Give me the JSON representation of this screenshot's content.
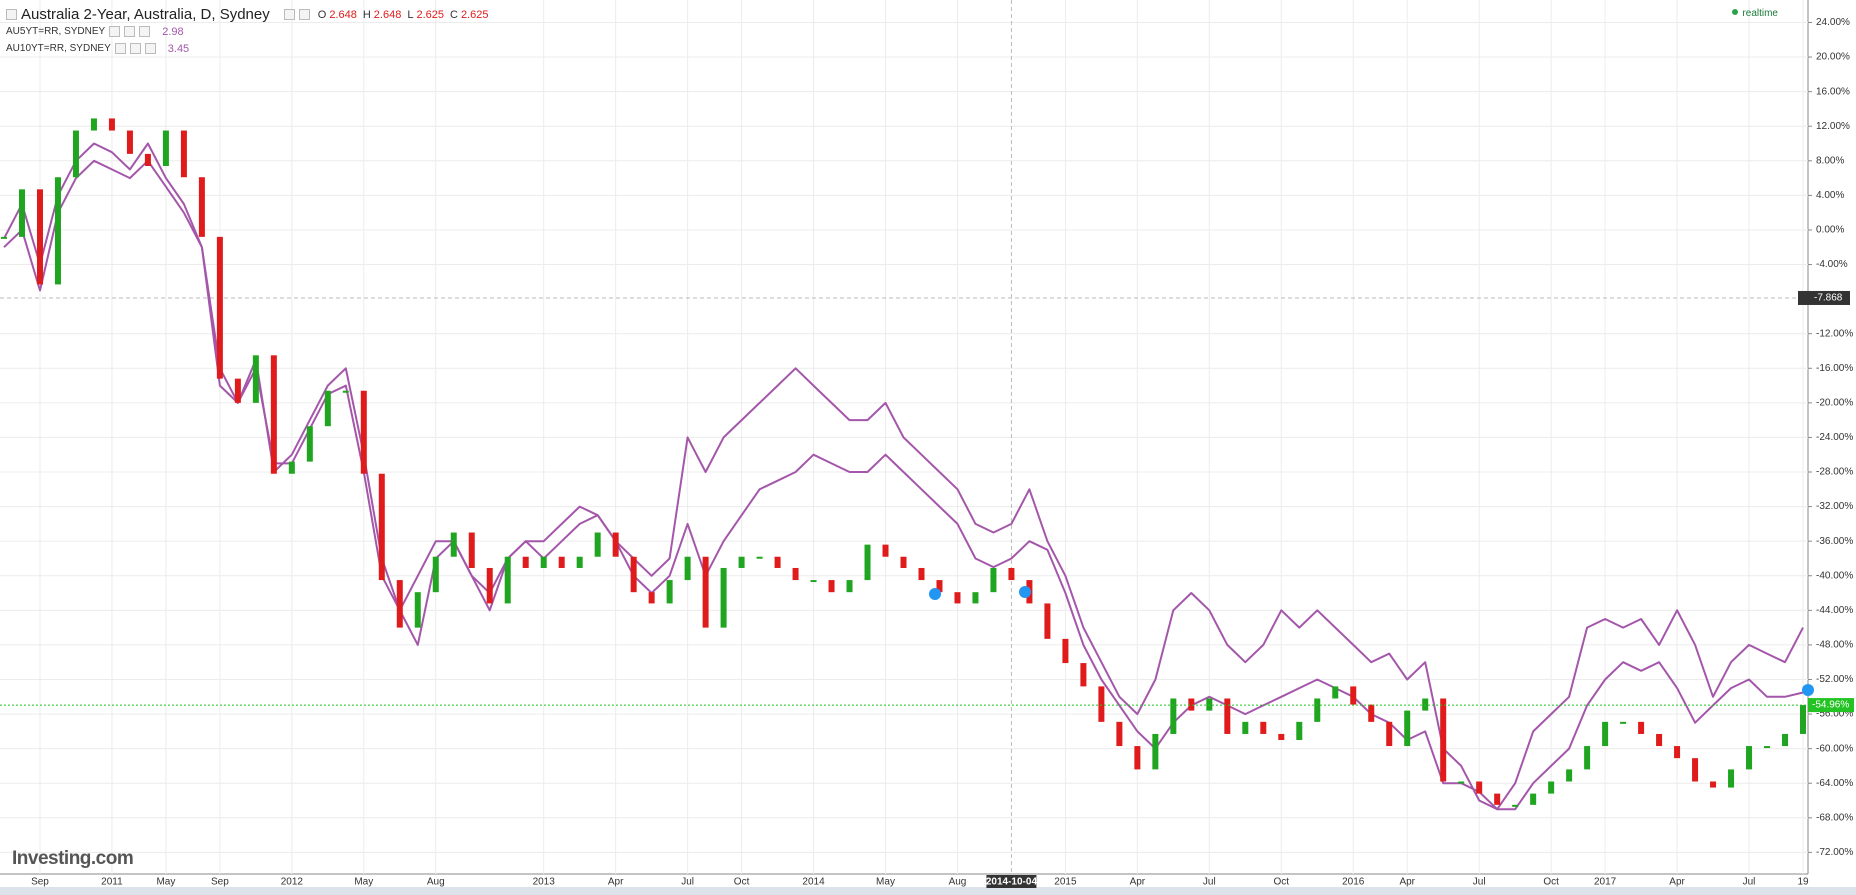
{
  "chart_data": {
    "type": "line",
    "title": "Australia 2-Year, Australia, D, Sydney",
    "ohlc": [
      {
        "label": "O",
        "value": 2.648
      },
      {
        "label": "H",
        "value": 2.648
      },
      {
        "label": "L",
        "value": 2.625
      },
      {
        "label": "C",
        "value": 2.625
      }
    ],
    "status": "realtime",
    "brand": "Investing.com",
    "categories": [
      null,
      null,
      "Sep",
      null,
      null,
      null,
      "2011",
      null,
      null,
      "May",
      null,
      null,
      "Sep",
      null,
      null,
      null,
      "2012",
      null,
      null,
      null,
      "May",
      null,
      null,
      null,
      "Aug",
      null,
      null,
      null,
      null,
      null,
      "2013",
      null,
      null,
      null,
      "Apr",
      null,
      null,
      null,
      "Jul",
      null,
      null,
      "Oct",
      null,
      null,
      null,
      "2014",
      null,
      null,
      null,
      "May",
      null,
      null,
      null,
      "Aug",
      null,
      null,
      "2014-10-04",
      null,
      null,
      "2015",
      null,
      null,
      null,
      "Apr",
      null,
      null,
      null,
      "Jul",
      null,
      null,
      null,
      "Oct",
      null,
      null,
      null,
      "2016",
      null,
      null,
      "Apr",
      null,
      null,
      null,
      "Jul",
      null,
      null,
      null,
      "Oct",
      null,
      null,
      "2017",
      null,
      null,
      null,
      "Apr",
      null,
      null,
      null,
      "Jul",
      null,
      null,
      "19"
    ],
    "series": [
      {
        "style": "candles",
        "up_color": "#1fa51f",
        "down_color": "#e01b1b",
        "values": [
          -0.8,
          4.7,
          -6.3,
          6.1,
          11.5,
          12.9,
          11.5,
          8.8,
          7.4,
          11.5,
          6.1,
          -0.8,
          -17.2,
          -20,
          -14.5,
          -28.2,
          -26.8,
          -22.7,
          -18.6,
          -18.6,
          -28.2,
          -40.5,
          -46,
          -41.9,
          -37.8,
          -35,
          -39.1,
          -43.2,
          -37.8,
          -39.1,
          -37.8,
          -39.1,
          -37.8,
          -35,
          -37.8,
          -41.9,
          -43.2,
          -40.5,
          -37.8,
          -46,
          -39.1,
          -37.8,
          -37.8,
          -39.1,
          -40.5,
          -40.5,
          -41.9,
          -40.5,
          -36.4,
          -37.8,
          -39.1,
          -40.5,
          -41.9,
          -43.2,
          -41.9,
          -39.1,
          -40.5,
          -43.2,
          -47.3,
          -50.1,
          -52.8,
          -56.9,
          -59.7,
          -62.4,
          -58.3,
          -54.2,
          -55.6,
          -54.2,
          -58.3,
          -56.9,
          -58.3,
          -59,
          -56.9,
          -54.2,
          -52.8,
          -54.9,
          -56.9,
          -59.7,
          -55.6,
          -54.2,
          -63.8,
          -63.8,
          -65.2,
          -66.5,
          -66.5,
          -65.2,
          -63.8,
          -62.4,
          -59.7,
          -56.9,
          -56.9,
          -58.3,
          -59.7,
          -61.1,
          -63.8,
          -64.5,
          -62.4,
          -59.7,
          -59.7,
          -58.3,
          -54.96
        ]
      },
      {
        "name": "AU5YT=RR, SYDNEY",
        "color": "#a457aa",
        "last": 2.98,
        "values": [
          -2,
          0,
          -7,
          2,
          6,
          8,
          7,
          6,
          8,
          5,
          2,
          -2,
          -16,
          -20,
          -16,
          -27,
          -27,
          -23,
          -19,
          -18,
          -28,
          -40,
          -44,
          -40,
          -36,
          -36,
          -40,
          -42,
          -38,
          -36,
          -38,
          -36,
          -34,
          -33,
          -36,
          -40,
          -42,
          -40,
          -34,
          -40,
          -36,
          -33,
          -30,
          -29,
          -28,
          -26,
          -27,
          -28,
          -28,
          -26,
          -28,
          -30,
          -32,
          -34,
          -38,
          -39,
          -38,
          -36,
          -37,
          -42,
          -48,
          -52,
          -55,
          -58,
          -60,
          -57,
          -55,
          -54,
          -55,
          -56,
          -55,
          -54,
          -53,
          -52,
          -53,
          -54,
          -56,
          -57,
          -59,
          -58,
          -64,
          -64,
          -65,
          -67,
          -67,
          -64,
          -62,
          -60,
          -55,
          -52,
          -50,
          -51,
          -50,
          -53,
          -57,
          -55,
          -53,
          -52,
          -54,
          -54,
          -53.5
        ]
      },
      {
        "name": "AU10YT=RR, SYDNEY",
        "color": "#a457aa",
        "last": 3.45,
        "values": [
          -1,
          3,
          -4,
          4,
          8,
          10,
          9,
          7,
          10,
          6,
          3,
          -2,
          -18,
          -20,
          -15,
          -28,
          -26,
          -22,
          -18,
          -16,
          -26,
          -38,
          -44,
          -48,
          -38,
          -36,
          -40,
          -44,
          -38,
          -36,
          -36,
          -34,
          -32,
          -33,
          -36,
          -38,
          -40,
          -38,
          -24,
          -28,
          -24,
          -22,
          -20,
          -18,
          -16,
          -18,
          -20,
          -22,
          -22,
          -20,
          -24,
          -26,
          -28,
          -30,
          -34,
          -35,
          -34,
          -30,
          -36,
          -40,
          -46,
          -50,
          -54,
          -56,
          -52,
          -44,
          -42,
          -44,
          -48,
          -50,
          -48,
          -44,
          -46,
          -44,
          -46,
          -48,
          -50,
          -49,
          -52,
          -50,
          -60,
          -62,
          -66,
          -67,
          -64,
          -58,
          -56,
          -54,
          -46,
          -45,
          -46,
          -45,
          -48,
          -44,
          -48,
          -54,
          -50,
          -48,
          -49,
          -50,
          -46
        ]
      }
    ],
    "ylim": [
      -74.5,
      26.6
    ],
    "yticks": [
      {
        "value": 24,
        "label": "24.00%"
      },
      {
        "value": 20,
        "label": "20.00%"
      },
      {
        "value": 16,
        "label": "16.00%"
      },
      {
        "value": 12,
        "label": "12.00%"
      },
      {
        "value": 8,
        "label": "8.00%"
      },
      {
        "value": 4,
        "label": "4.00%"
      },
      {
        "value": 0,
        "label": "0.00%"
      },
      {
        "value": -4,
        "label": "-4.00%"
      },
      {
        "value": -12,
        "label": "-12.00%"
      },
      {
        "value": -16,
        "label": "-16.00%"
      },
      {
        "value": -20,
        "label": "-20.00%"
      },
      {
        "value": -24,
        "label": "-24.00%"
      },
      {
        "value": -28,
        "label": "-28.00%"
      },
      {
        "value": -32,
        "label": "-32.00%"
      },
      {
        "value": -36,
        "label": "-36.00%"
      },
      {
        "value": -40,
        "label": "-40.00%"
      },
      {
        "value": -44,
        "label": "-44.00%"
      },
      {
        "value": -48,
        "label": "-48.00%"
      },
      {
        "value": -52,
        "label": "-52.00%"
      },
      {
        "value": -56,
        "label": "-56.00%"
      },
      {
        "value": -60,
        "label": "-60.00%"
      },
      {
        "value": -64,
        "label": "-64.00%"
      },
      {
        "value": -68,
        "label": "-68.00%"
      },
      {
        "value": -72,
        "label": "-72.00%"
      }
    ],
    "grid": true,
    "crosshair": {
      "x": "2014-10-04",
      "y": -7.868
    },
    "last_price": {
      "value": -54.96,
      "label": "-54.96%",
      "color": "#22c322"
    }
  }
}
